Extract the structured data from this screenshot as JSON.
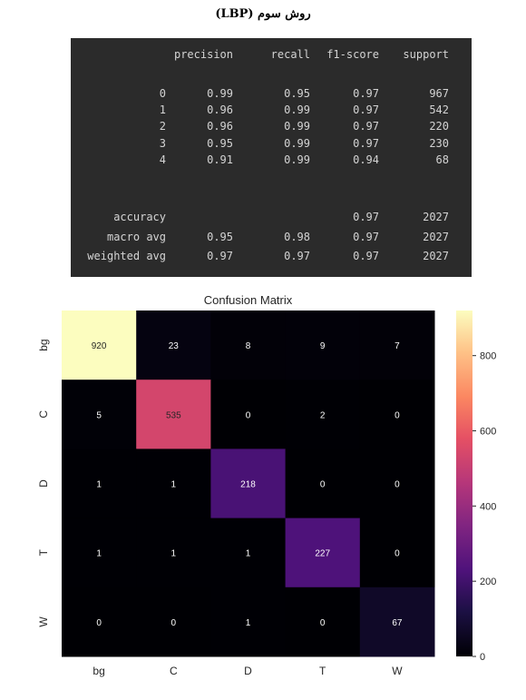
{
  "page_title": "روش سوم (LBP)",
  "report": {
    "headers": [
      "precision",
      "recall",
      "f1-score",
      "support"
    ],
    "rows": [
      {
        "label": "0",
        "precision": "0.99",
        "recall": "0.95",
        "f1": "0.97",
        "support": "967"
      },
      {
        "label": "1",
        "precision": "0.96",
        "recall": "0.99",
        "f1": "0.97",
        "support": "542"
      },
      {
        "label": "2",
        "precision": "0.96",
        "recall": "0.99",
        "f1": "0.97",
        "support": "220"
      },
      {
        "label": "3",
        "precision": "0.95",
        "recall": "0.99",
        "f1": "0.97",
        "support": "230"
      },
      {
        "label": "4",
        "precision": "0.91",
        "recall": "0.99",
        "f1": "0.94",
        "support": "68"
      }
    ],
    "summary": [
      {
        "label": "accuracy",
        "precision": "",
        "recall": "",
        "f1": "0.97",
        "support": "2027"
      },
      {
        "label": "macro avg",
        "precision": "0.95",
        "recall": "0.98",
        "f1": "0.97",
        "support": "2027"
      },
      {
        "label": "weighted avg",
        "precision": "0.97",
        "recall": "0.97",
        "f1": "0.97",
        "support": "2027"
      }
    ]
  },
  "chart_data": {
    "type": "heatmap",
    "title": "Confusion Matrix",
    "x_labels": [
      "bg",
      "C",
      "D",
      "T",
      "W"
    ],
    "y_labels": [
      "bg",
      "C",
      "D",
      "T",
      "W"
    ],
    "values": [
      [
        920,
        23,
        8,
        9,
        7
      ],
      [
        5,
        535,
        0,
        2,
        0
      ],
      [
        1,
        1,
        218,
        0,
        0
      ],
      [
        1,
        1,
        1,
        227,
        0
      ],
      [
        0,
        0,
        1,
        0,
        67
      ]
    ],
    "colormap": "magma",
    "color_range": [
      0,
      920
    ],
    "colorbar_ticks": [
      0,
      200,
      400,
      600,
      800
    ]
  }
}
